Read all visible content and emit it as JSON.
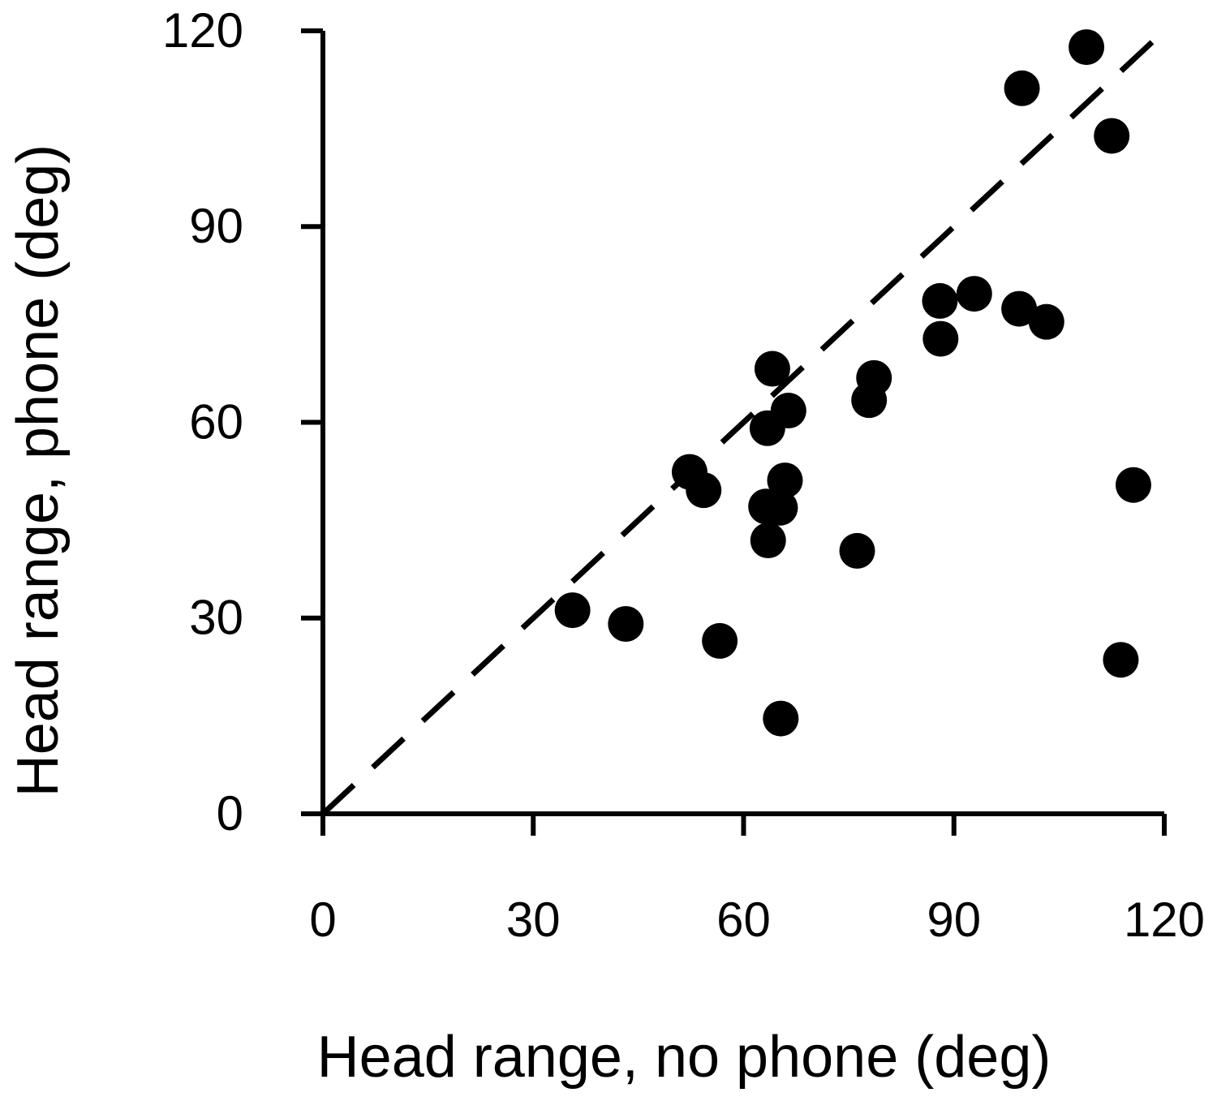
{
  "chart_data": {
    "type": "scatter",
    "x_label": "Head range, no phone (deg)",
    "y_label": "Head range, phone (deg)",
    "xlim": [
      0,
      120
    ],
    "ylim": [
      0,
      120
    ],
    "xticks": [
      0,
      30,
      60,
      90,
      120
    ],
    "yticks": [
      0,
      30,
      60,
      90,
      120
    ],
    "identity_line": true,
    "color": "#000000",
    "x": [
      35.6,
      43.2,
      56.6,
      65.3,
      52.3,
      54.3,
      64.1,
      63.4,
      66.4,
      65.9,
      63.2,
      65.2,
      63.5,
      76.2,
      78.6,
      77.9,
      88.0,
      88.1,
      92.9,
      99.3,
      103.2,
      99.7,
      108.9,
      112.5,
      115.6,
      113.8
    ],
    "values": [
      31.2,
      29.1,
      26.5,
      14.6,
      52.4,
      49.6,
      68.2,
      59.1,
      61.8,
      51.1,
      47.1,
      46.9,
      41.9,
      40.3,
      66.8,
      63.4,
      78.6,
      72.8,
      79.7,
      77.4,
      75.4,
      111.2,
      117.5,
      103.9,
      50.4,
      23.6
    ]
  }
}
